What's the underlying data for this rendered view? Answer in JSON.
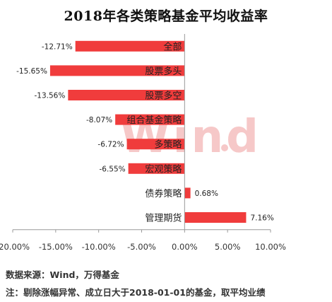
{
  "chart_data": {
    "type": "bar",
    "orientation": "horizontal",
    "title": "2018年各类策略基金平均收益率",
    "categories": [
      "全部",
      "股票多头",
      "股票多空",
      "组合基金策略",
      "多策略",
      "宏观策略",
      "债券策略",
      "管理期货"
    ],
    "values": [
      -12.71,
      -15.65,
      -13.56,
      -8.07,
      -6.72,
      -6.55,
      0.68,
      7.16
    ],
    "data_labels": [
      "-12.71%",
      "-15.65%",
      "-13.56%",
      "-8.07%",
      "-6.72%",
      "-6.55%",
      "0.68%",
      "7.16%"
    ],
    "xlim": [
      -20,
      10
    ],
    "xticks": [
      -20,
      -15,
      -10,
      -5,
      0,
      5,
      10
    ],
    "xtick_labels": [
      "-20.00%",
      "-15.00%",
      "-10.00%",
      "-5.00%",
      "0.00%",
      "5.00%",
      "10.00%"
    ],
    "xlabel": "",
    "ylabel": "",
    "grid": false,
    "legend": "none",
    "bar_color": "#f03c3c",
    "watermark_text": "Wind"
  },
  "notes": {
    "source": "数据来源：Wind，万得基金",
    "footnote": "注：剔除涨幅异常、成立日大于2018-01-01的基金，取平均业绩"
  }
}
